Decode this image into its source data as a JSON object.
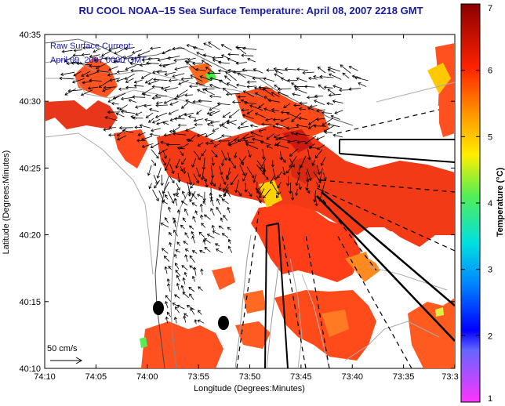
{
  "title": "RU COOL  NOAA–15  Sea Surface Temperature:  April 08, 2007 2218 GMT",
  "legend_line1": "Raw Surface Current:",
  "legend_line2": "April 09, 2007 0000 GMT",
  "scale_label": "50 cm/s",
  "xlabel": "Longitude (Degrees:Minutes)",
  "ylabel": "Latitude (Degrees:Minutes)",
  "colorbar_label": "Temperature (°C)",
  "x_ticks": [
    "74:10",
    "74:05",
    "74:00",
    "73:55",
    "73:50",
    "73:45",
    "73:40",
    "73:35",
    "73:3"
  ],
  "y_ticks": [
    "40:35",
    "40:30",
    "40:25",
    "40:20",
    "40:15",
    "40:10"
  ],
  "colorbar_ticks": [
    "1",
    "2",
    "3",
    "4",
    "5",
    "6",
    "7"
  ],
  "colors": {
    "title": "#1a1aa0",
    "sst_warm": "#ff3300",
    "sst_hot": "#e01a10",
    "sst_mid": "#ff8c00",
    "sst_yellow": "#ffd400",
    "land": "#ffffff",
    "contour": "#999999"
  }
}
